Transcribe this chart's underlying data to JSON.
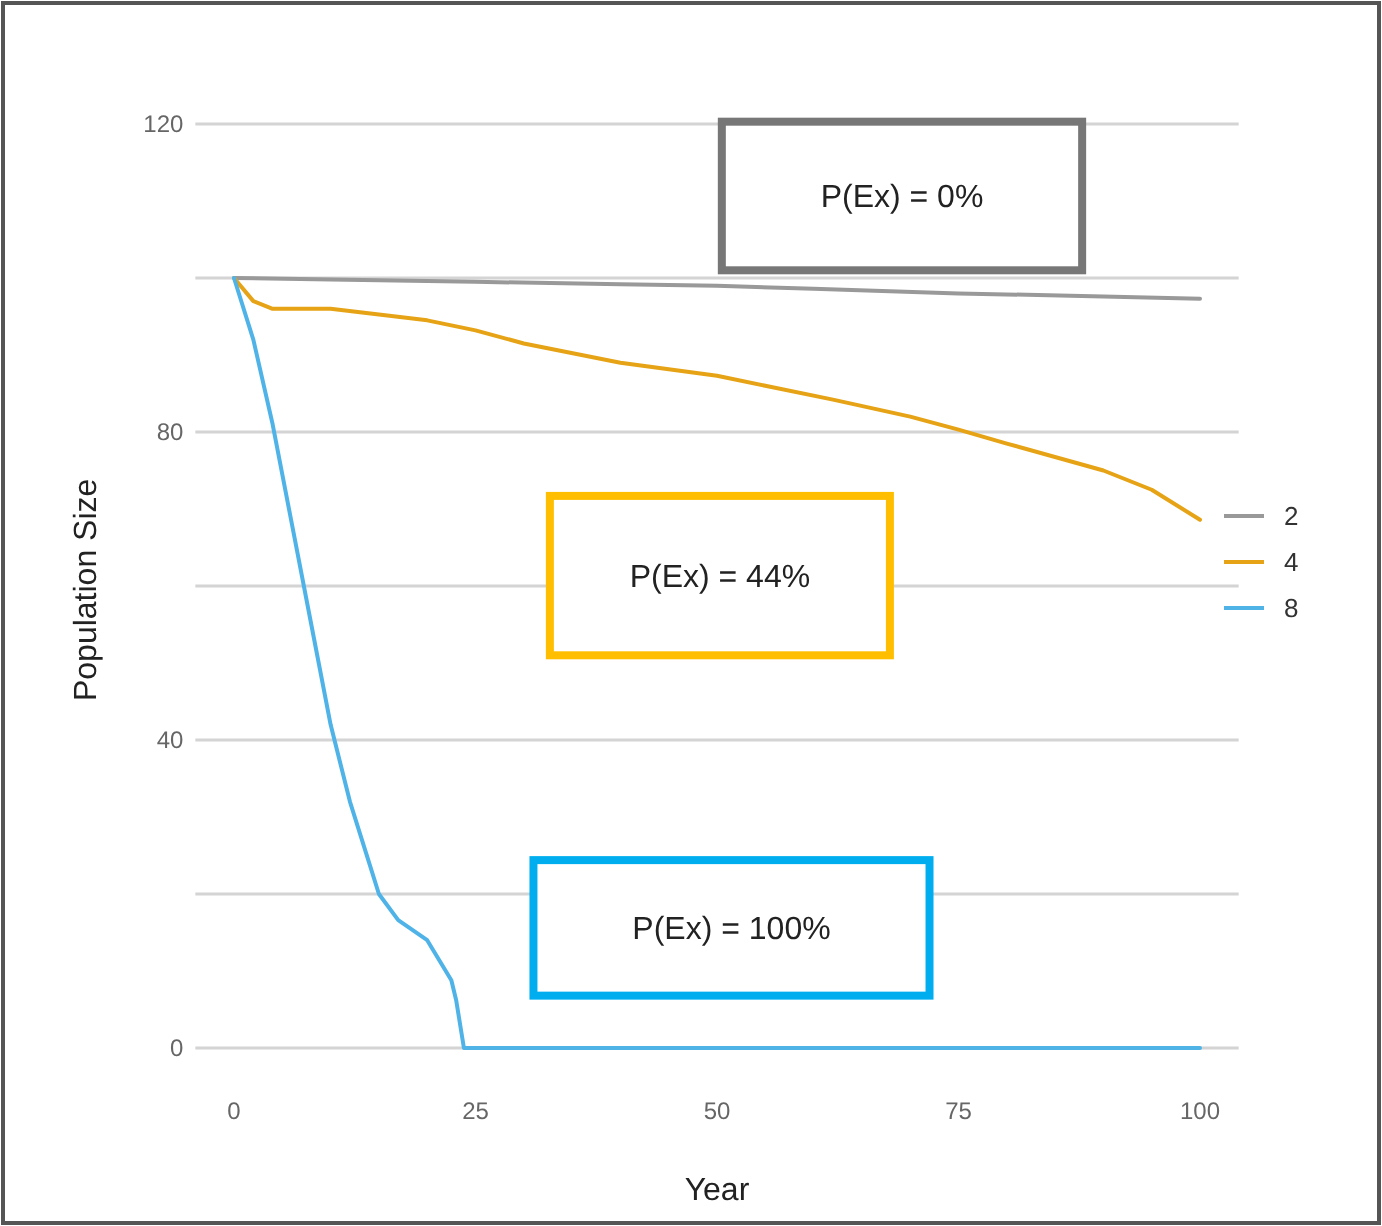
{
  "chart_data": {
    "type": "line",
    "xlabel": "Year",
    "ylabel": "Population Size",
    "xlim": [
      -4,
      104
    ],
    "ylim": [
      0,
      120
    ],
    "xticks": [
      0,
      25,
      50,
      75,
      100
    ],
    "yticks": [
      0,
      {
        "value": 20,
        "label": null
      },
      40,
      {
        "value": 60,
        "label": null
      },
      80,
      {
        "value": 100,
        "label": null
      },
      120
    ],
    "grid": "y",
    "legend": "right",
    "line_style": "solid",
    "marker": "none",
    "series": [
      {
        "name": "2",
        "color": "#999999",
        "x": [
          0,
          10,
          25,
          40,
          50,
          60,
          75,
          90,
          100
        ],
        "values": [
          100,
          99.8,
          99.5,
          99.2,
          99,
          98.6,
          98,
          97.6,
          97.3
        ]
      },
      {
        "name": "4",
        "color": "#e6a316",
        "x": [
          0,
          2,
          4,
          10,
          20,
          25,
          30,
          40,
          50,
          55,
          62,
          70,
          75,
          80,
          90,
          95,
          100
        ],
        "values": [
          100,
          97,
          96,
          96,
          94.5,
          93.2,
          91.5,
          89,
          87.3,
          86,
          84.2,
          82,
          80.3,
          78.5,
          75,
          72.5,
          68.6
        ]
      },
      {
        "name": "8",
        "color": "#4fb3e8",
        "x": [
          0,
          2,
          4,
          6,
          8,
          10,
          12,
          14,
          15,
          17,
          20,
          22.5,
          23,
          23.8,
          100
        ],
        "values": [
          100,
          92,
          81,
          68,
          55,
          42,
          32,
          24,
          20,
          16.6,
          14,
          8.8,
          6.2,
          0,
          0
        ]
      }
    ],
    "annotations": [
      "P(Ex) = 0%",
      "P(Ex) = 44%",
      "P(Ex) = 100%"
    ]
  }
}
